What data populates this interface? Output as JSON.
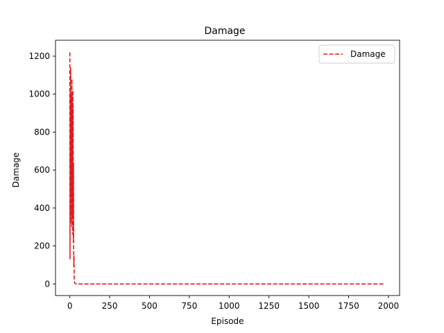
{
  "chart_data": {
    "type": "line",
    "title": "Damage",
    "xlabel": "Episode",
    "ylabel": "Damage",
    "xlim": [
      -90,
      2070
    ],
    "ylim": [
      -61,
      1284
    ],
    "xticks": [
      0,
      250,
      500,
      750,
      1000,
      1250,
      1500,
      1750,
      2000
    ],
    "yticks": [
      0,
      200,
      400,
      600,
      800,
      1000,
      1200
    ],
    "grid": false,
    "legend": {
      "position": "top-right",
      "entries": [
        "Damage"
      ]
    },
    "series": [
      {
        "name": "Damage",
        "color": "#e31a1c",
        "linestyle": "dashed",
        "x": [
          0,
          1,
          2,
          3,
          4,
          5,
          6,
          7,
          8,
          9,
          10,
          11,
          12,
          13,
          14,
          15,
          16,
          17,
          18,
          19,
          20,
          21,
          22,
          23,
          24,
          25,
          26,
          27,
          28,
          29,
          30,
          35,
          40,
          60,
          100,
          250,
          500,
          750,
          1000,
          1250,
          1500,
          1750,
          1975
        ],
        "y": [
          1220,
          130,
          560,
          1010,
          320,
          1140,
          480,
          880,
          360,
          1000,
          520,
          950,
          300,
          1080,
          450,
          990,
          350,
          900,
          260,
          1020,
          600,
          940,
          220,
          640,
          180,
          90,
          150,
          40,
          20,
          10,
          5,
          2,
          0,
          0,
          0,
          0,
          0,
          0,
          0,
          0,
          0,
          0,
          0
        ]
      }
    ]
  }
}
